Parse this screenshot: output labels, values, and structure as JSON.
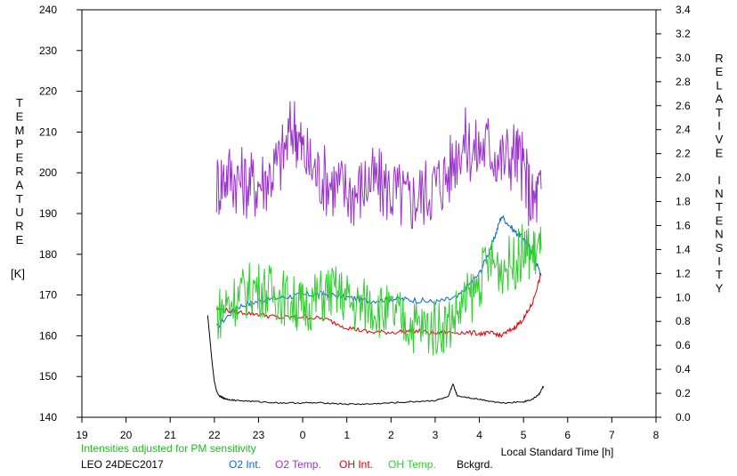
{
  "chart_data": {
    "type": "line",
    "left_axis": {
      "label_letters": [
        "T",
        "E",
        "M",
        "P",
        "E",
        "R",
        "A",
        "T",
        "U",
        "R",
        "E"
      ],
      "unit": "[K]",
      "ylim": [
        140,
        240
      ],
      "ticks": [
        "140",
        "150",
        "160",
        "170",
        "180",
        "190",
        "200",
        "210",
        "220",
        "230",
        "240"
      ]
    },
    "right_axis": {
      "label_letters": [
        "R",
        "E",
        "L",
        "A",
        "T",
        "I",
        "V",
        "E",
        "",
        "I",
        "N",
        "T",
        "E",
        "N",
        "S",
        "I",
        "T",
        "Y"
      ],
      "ylim": [
        0.0,
        3.4
      ],
      "ticks": [
        "0.0",
        "0.2",
        "0.4",
        "0.6",
        "0.8",
        "1.0",
        "1.2",
        "1.4",
        "1.6",
        "1.8",
        "2.0",
        "2.2",
        "2.4",
        "2.6",
        "2.8",
        "3.0",
        "3.2",
        "3.4"
      ]
    },
    "x_axis": {
      "label": "Local Standard Time [h]",
      "range": [
        19,
        32
      ],
      "ticks": [
        "19",
        "20",
        "21",
        "22",
        "23",
        "0",
        "1",
        "2",
        "3",
        "4",
        "5",
        "6",
        "7",
        "8"
      ]
    },
    "note": "Intensities adjusted for PM sensitivity",
    "station": "LEO 24DEC2017",
    "colors": {
      "o2_int": "#0066dd",
      "o2_temp": "#9933cc",
      "oh_int": "#dd0000",
      "oh_temp": "#33cc33",
      "background": "#000000",
      "note": "#22bb22"
    },
    "series": [
      {
        "name": "O2 Int.",
        "axis": "right",
        "key": "o2_int",
        "x": [
          22.05,
          22.5,
          23.0,
          23.5,
          24.0,
          24.5,
          25.0,
          25.5,
          26.0,
          26.5,
          27.0,
          27.5,
          28.0,
          28.3,
          28.5,
          28.8,
          29.0,
          29.2,
          29.4
        ],
        "y": [
          0.75,
          0.92,
          0.97,
          1.0,
          1.02,
          1.03,
          1.0,
          0.97,
          0.99,
          0.98,
          0.96,
          1.0,
          1.2,
          1.45,
          1.68,
          1.55,
          1.5,
          1.38,
          1.18
        ]
      },
      {
        "name": "O2 Temp.",
        "axis": "left",
        "key": "o2_temp",
        "x": [
          22.05,
          22.3,
          22.6,
          22.9,
          23.2,
          23.5,
          23.8,
          24.0,
          24.3,
          24.6,
          24.9,
          25.2,
          25.5,
          25.8,
          26.1,
          26.4,
          26.7,
          27.0,
          27.3,
          27.6,
          27.9,
          28.2,
          28.5,
          28.8,
          29.0,
          29.2,
          29.4
        ],
        "y": [
          197,
          200,
          198,
          197,
          199,
          203,
          212,
          205,
          200,
          198,
          196,
          195,
          198,
          197,
          195,
          193,
          195,
          197,
          200,
          208,
          205,
          207,
          203,
          205,
          201,
          192,
          196
        ]
      },
      {
        "name": "OH Int.",
        "axis": "right",
        "key": "oh_int",
        "x": [
          22.05,
          22.5,
          23.0,
          23.5,
          24.0,
          24.5,
          25.0,
          25.5,
          26.0,
          26.5,
          27.0,
          27.5,
          28.0,
          28.3,
          28.5,
          28.8,
          29.0,
          29.2,
          29.4
        ],
        "y": [
          0.9,
          0.88,
          0.86,
          0.83,
          0.84,
          0.82,
          0.75,
          0.71,
          0.71,
          0.72,
          0.7,
          0.71,
          0.7,
          0.7,
          0.68,
          0.75,
          0.82,
          0.95,
          1.2
        ]
      },
      {
        "name": "OH Temp.",
        "axis": "left",
        "key": "oh_temp",
        "x": [
          22.05,
          22.3,
          22.6,
          22.9,
          23.2,
          23.5,
          23.8,
          24.0,
          24.3,
          24.6,
          24.9,
          25.2,
          25.5,
          25.8,
          26.1,
          26.4,
          26.7,
          27.0,
          27.3,
          27.6,
          27.9,
          28.2,
          28.5,
          28.8,
          29.0,
          29.2,
          29.4
        ],
        "y": [
          165,
          168,
          170,
          172,
          171,
          170,
          168,
          167,
          169,
          171,
          170,
          167,
          168,
          166,
          165,
          163,
          162,
          162,
          163,
          167,
          171,
          178,
          177,
          178,
          181,
          180,
          181
        ]
      },
      {
        "name": "Bckgrd.",
        "axis": "right",
        "key": "background",
        "x": [
          21.85,
          21.9,
          21.95,
          22.0,
          22.05,
          22.1,
          22.2,
          22.3,
          22.5,
          23.0,
          23.5,
          24.0,
          24.5,
          25.0,
          25.5,
          26.0,
          26.5,
          27.0,
          27.3,
          27.4,
          27.5,
          28.0,
          28.5,
          29.0,
          29.2,
          29.35,
          29.45
        ],
        "y": [
          0.85,
          0.65,
          0.45,
          0.3,
          0.22,
          0.18,
          0.16,
          0.15,
          0.14,
          0.13,
          0.12,
          0.12,
          0.12,
          0.11,
          0.11,
          0.12,
          0.13,
          0.14,
          0.17,
          0.28,
          0.18,
          0.15,
          0.12,
          0.13,
          0.15,
          0.19,
          0.26
        ]
      }
    ]
  }
}
